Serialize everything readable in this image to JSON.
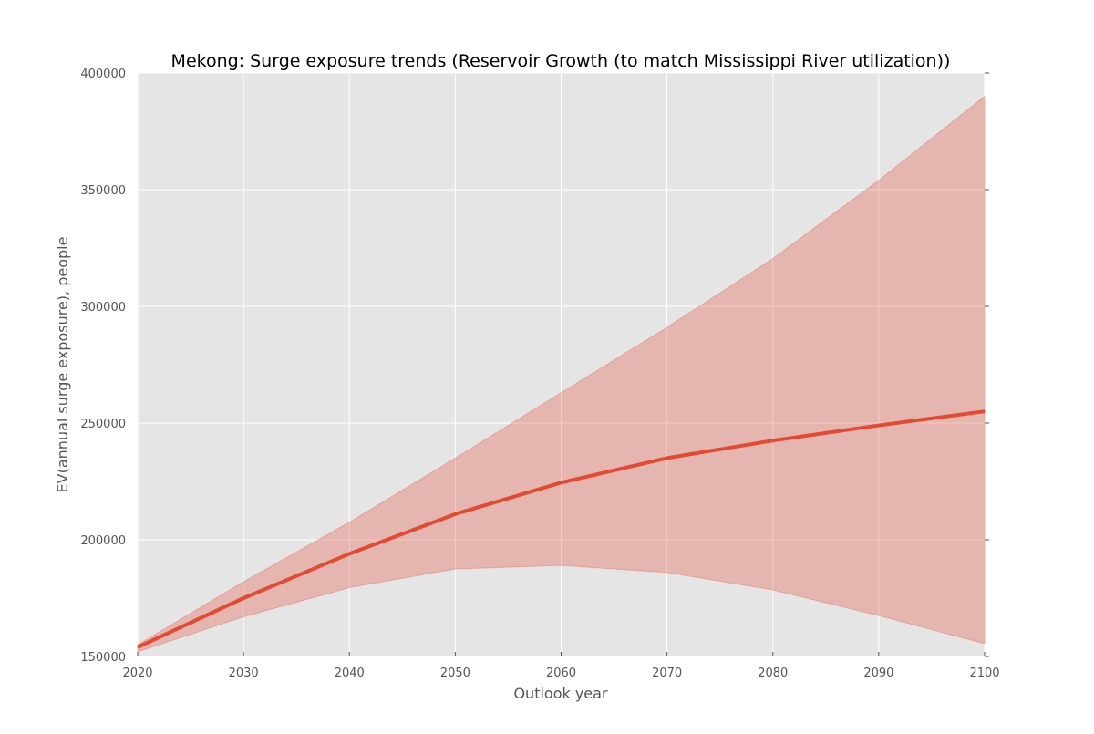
{
  "chart_data": {
    "type": "line",
    "title": "Mekong: Surge exposure trends (Reservoir Growth (to match Mississippi River utilization))",
    "xlabel": "Outlook year",
    "ylabel": "EV(annual surge exposure), people",
    "x": [
      2020,
      2030,
      2040,
      2050,
      2060,
      2070,
      2080,
      2090,
      2100
    ],
    "xlim": [
      2020,
      2100
    ],
    "ylim": [
      150000,
      400000
    ],
    "x_ticks": [
      "2020",
      "2030",
      "2040",
      "2050",
      "2060",
      "2070",
      "2080",
      "2090",
      "2100"
    ],
    "y_ticks": [
      "150000",
      "200000",
      "250000",
      "300000",
      "350000",
      "400000"
    ],
    "grid": true,
    "series": [
      {
        "type": "line",
        "values": [
          154000,
          175000,
          194000,
          211000,
          224500,
          235000,
          242500,
          249000,
          255000
        ],
        "color": "#e24a33"
      },
      {
        "type": "band",
        "lower": [
          152000,
          167000,
          179500,
          187500,
          189000,
          186000,
          178500,
          167500,
          155500
        ],
        "upper": [
          155000,
          182000,
          207500,
          235000,
          263000,
          291000,
          320500,
          354000,
          390000
        ],
        "color": "#e24a33"
      }
    ],
    "colors": {
      "plot_background": "#e5e5e5",
      "grid": "#ffffff",
      "line": "#e24a33",
      "band_fill": "#e24a33"
    }
  }
}
